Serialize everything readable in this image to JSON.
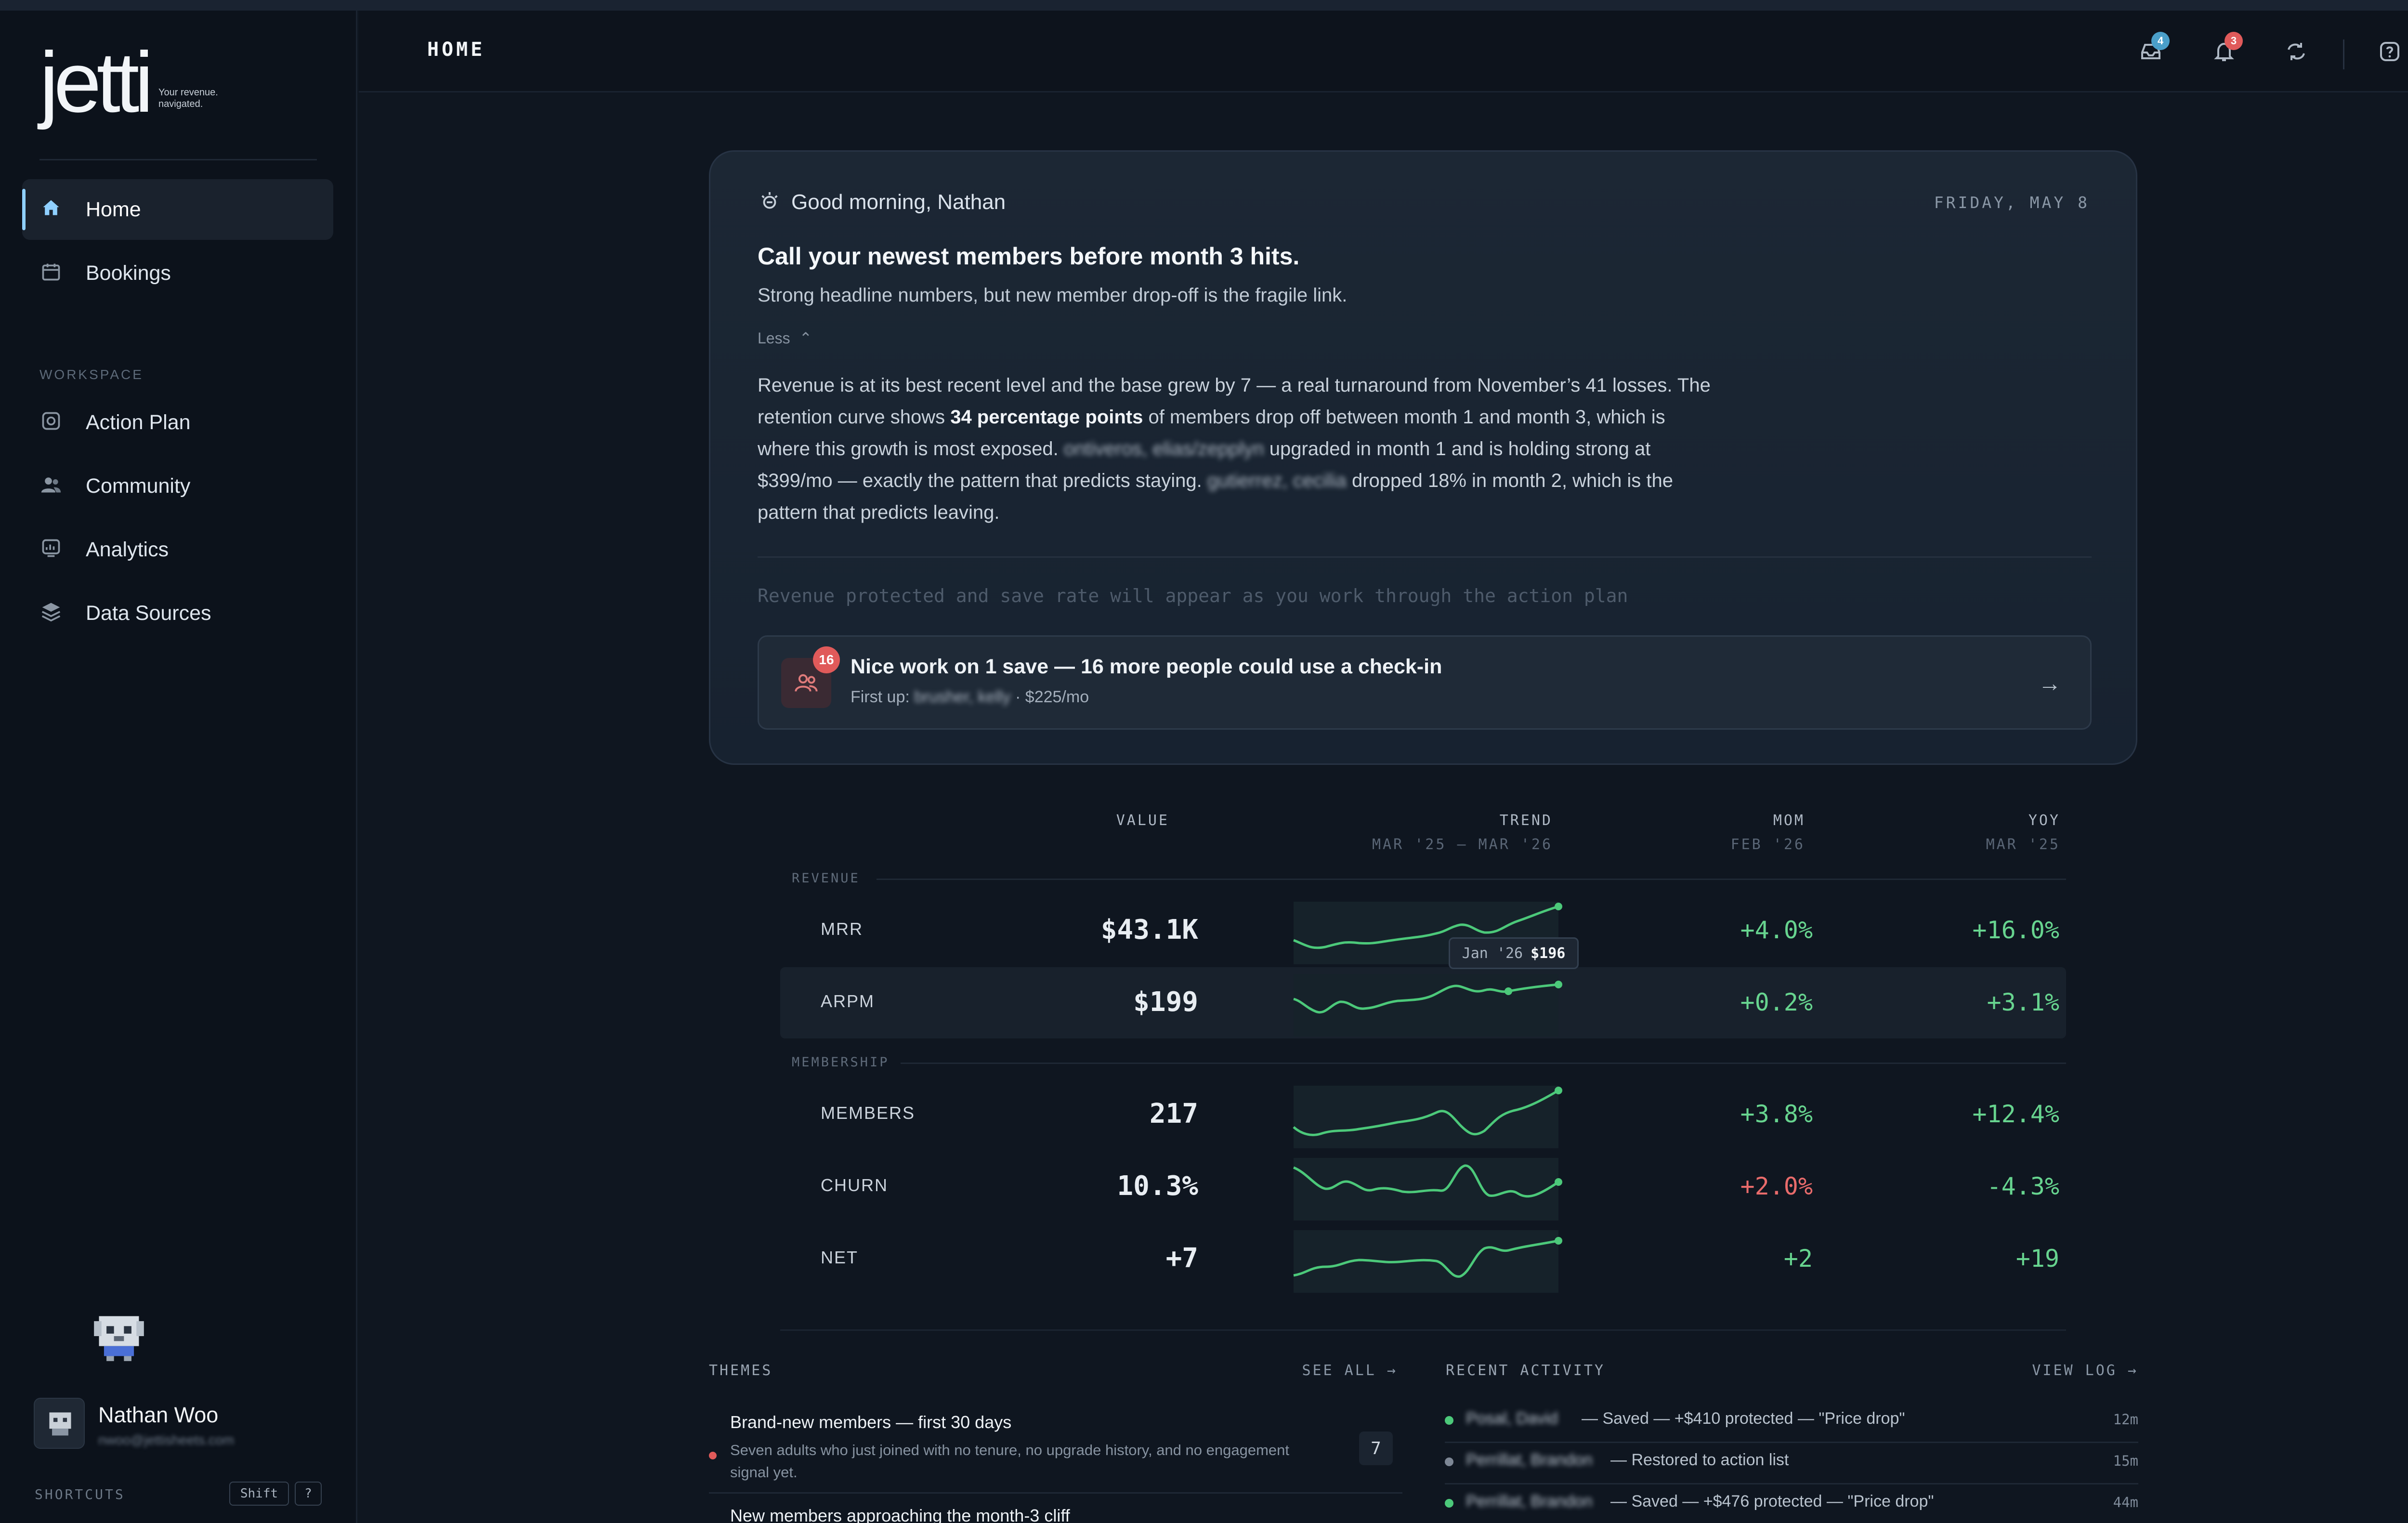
{
  "sidebar": {
    "logo": "jetti",
    "tagline_1": "Your revenue.",
    "tagline_2": "navigated.",
    "nav_top": [
      {
        "label": "Home",
        "icon": "home-icon",
        "active": true
      },
      {
        "label": "Bookings",
        "icon": "calendar-icon",
        "active": false
      }
    ],
    "section_label": "WORKSPACE",
    "nav_workspace": [
      {
        "label": "Action Plan",
        "icon": "target-icon"
      },
      {
        "label": "Community",
        "icon": "users-icon"
      },
      {
        "label": "Analytics",
        "icon": "chart-icon"
      },
      {
        "label": "Data Sources",
        "icon": "layers-icon"
      }
    ],
    "user": {
      "name": "Nathan Woo",
      "email": "nwoo@jettisheets.com"
    },
    "shortcuts_label": "SHORTCUTS",
    "shortcut_keys": [
      "Shift",
      "?"
    ]
  },
  "header": {
    "title": "HOME",
    "icons": [
      {
        "name": "inbox-icon",
        "badge": "4",
        "badge_color": "#4a9fc9"
      },
      {
        "name": "bell-icon",
        "badge": "3",
        "badge_color": "#e05a5a"
      },
      {
        "name": "sync-icon",
        "badge": "",
        "badge_color": ""
      },
      {
        "name": "help-icon",
        "badge": "",
        "badge_color": ""
      }
    ]
  },
  "briefing": {
    "greeting": "Good morning, Nathan",
    "date": "FRIDAY, MAY 8",
    "headline": "Call your newest members before month 3 hits.",
    "subline": "Strong headline numbers, but new member drop-off is the fragile link.",
    "toggle": "Less",
    "body": {
      "p1": "Revenue is at its best recent level and the base grew by 7 — a real turnaround from November’s 41 losses. The retention curve shows ",
      "bold": "34 percentage points",
      "p2": " of members drop off between month 1 and month 3, which is where this growth is most exposed. ",
      "name1": "ontiveros, elias/zepplyn",
      "p3": " upgraded in month 1 and is holding strong at $399/mo — exactly the pattern that predicts staying. ",
      "name2": "gutierrez, cecilia",
      "p4": " dropped 18% in month 2, which is the pattern that predicts leaving."
    },
    "placeholder": "Revenue protected and save rate will appear as you work through the action plan",
    "cta": {
      "badge": "16",
      "title": "Nice work on 1 save — 16 more people could use a check-in",
      "sub_prefix": "First up: ",
      "sub_name": "brusher, kelly",
      "sub_suffix": " · $225/mo"
    }
  },
  "metrics": {
    "columns": {
      "value": "VALUE",
      "trend": "TREND",
      "trend_sub": "MAR '25 – MAR '26",
      "mom": "MOM",
      "mom_sub": "FEB '26",
      "yoy": "YOY",
      "yoy_sub": "MAR '25"
    },
    "groups": {
      "revenue": "REVENUE",
      "membership": "MEMBERSHIP"
    },
    "rows": [
      {
        "label": "MRR",
        "value": "$43.1K",
        "mom": "+4.0%",
        "yoy": "+16.0%",
        "mom_dir": "pos",
        "yoy_dir": "pos"
      },
      {
        "label": "ARPM",
        "value": "$199",
        "mom": "+0.2%",
        "yoy": "+3.1%",
        "mom_dir": "pos",
        "yoy_dir": "pos"
      },
      {
        "label": "MEMBERS",
        "value": "217",
        "mom": "+3.8%",
        "yoy": "+12.4%",
        "mom_dir": "pos",
        "yoy_dir": "pos"
      },
      {
        "label": "CHURN",
        "value": "10.3%",
        "mom": "+2.0%",
        "yoy": "-4.3%",
        "mom_dir": "neg",
        "yoy_dir": "pos"
      },
      {
        "label": "NET",
        "value": "+7",
        "mom": "+2",
        "yoy": "+19",
        "mom_dir": "pos",
        "yoy_dir": "pos"
      }
    ],
    "tooltip": {
      "period": "Jan '26",
      "value": "$196"
    }
  },
  "themes": {
    "title": "THEMES",
    "link": "SEE ALL →",
    "items": [
      {
        "title": "Brand-new members — first 30 days",
        "desc": "Seven adults who just joined with no tenure, no upgrade history, and no engagement signal yet.",
        "count": "7"
      },
      {
        "title": "New members approaching the month-3 cliff",
        "desc": "",
        "count": ""
      }
    ]
  },
  "activity": {
    "title": "RECENT ACTIVITY",
    "link": "VIEW LOG →",
    "items": [
      {
        "name": "Posal, David",
        "text": " — Saved — +$410 protected — \"Price drop\"",
        "time": "12m",
        "dot": "#4cc97a"
      },
      {
        "name": "Perrillat, Brandon",
        "text": " — Restored to action list",
        "time": "15m",
        "dot": "#7d8795"
      },
      {
        "name": "Perrillat, Brandon",
        "text": " — Saved — +$476 protected — \"Price drop\"",
        "time": "44m",
        "dot": "#4cc97a"
      }
    ]
  }
}
